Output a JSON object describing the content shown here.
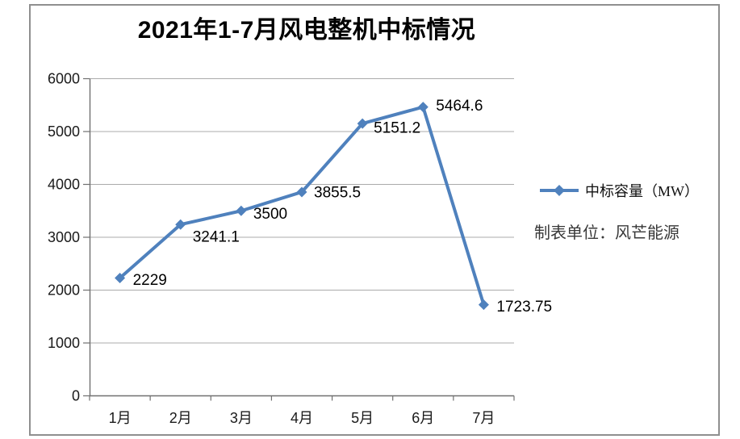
{
  "chart_data": {
    "type": "line",
    "title": "2021年1-7月风电整机中标情况",
    "categories": [
      "1月",
      "2月",
      "3月",
      "4月",
      "5月",
      "6月",
      "7月"
    ],
    "series": [
      {
        "name": "中标容量（MW）",
        "values": [
          2229,
          3241.1,
          3500,
          3855.5,
          5151.2,
          5464.6,
          1723.75
        ],
        "data_labels": [
          "2229",
          "3241.1",
          "3500",
          "3855.5",
          "5151.2",
          "5464.6",
          "1723.75"
        ]
      }
    ],
    "y_ticks": [
      0,
      1000,
      2000,
      3000,
      4000,
      5000,
      6000
    ],
    "ylim": [
      0,
      6000
    ],
    "grid": "horizontal",
    "legend_position": "right",
    "note": "制表单位：风芒能源",
    "colors": {
      "line": "#4F81BD",
      "gridline": "#ABABAB",
      "axis": "#707070",
      "axis_text": "#1a1a1a",
      "frame_border": "#8f8f8f",
      "data_label_text": "#000000"
    }
  }
}
